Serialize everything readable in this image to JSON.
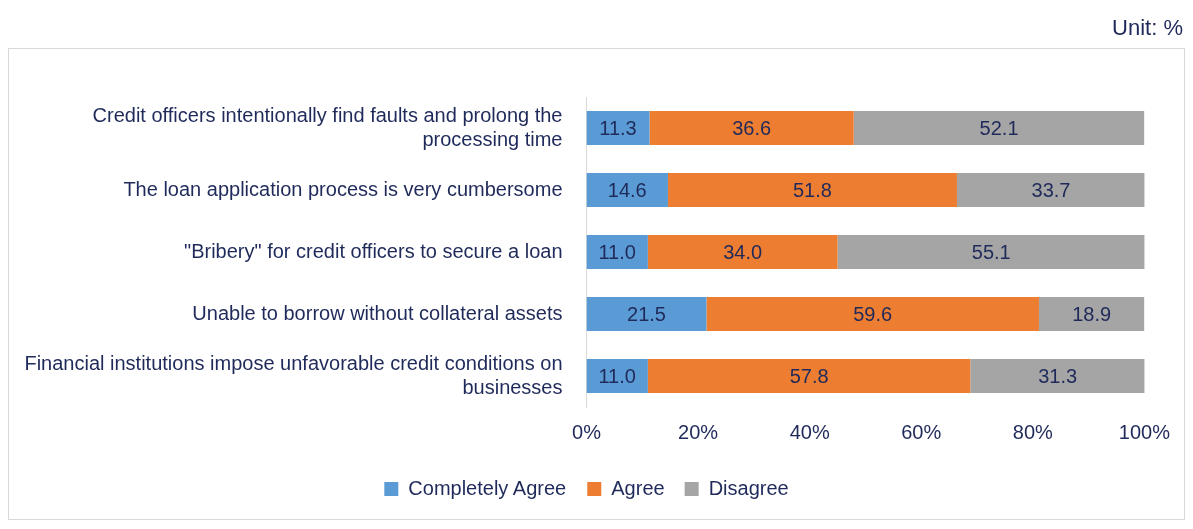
{
  "chart_data": {
    "type": "bar",
    "orientation": "horizontal",
    "stacked": true,
    "categories": [
      "Credit officers intentionally find faults and prolong the processing time",
      "The loan application process is very cumbersome",
      "\"Bribery\" for credit officers to secure a loan",
      "Unable to borrow without collateral assets",
      "Financial institutions impose unfavorable credit conditions on businesses"
    ],
    "series": [
      {
        "name": "Completely Agree",
        "color": "#5b9bd5",
        "values": [
          11.3,
          14.6,
          11.0,
          21.5,
          11.0
        ],
        "value_labels": [
          "11.3",
          "14.6",
          "11.0",
          "21.5",
          "11.0"
        ]
      },
      {
        "name": "Agree",
        "color": "#ed7d31",
        "values": [
          36.6,
          51.8,
          34.0,
          59.6,
          57.8
        ],
        "value_labels": [
          "36.6",
          "51.8",
          "34.0",
          "59.6",
          "57.8"
        ]
      },
      {
        "name": "Disagree",
        "color": "#a5a5a5",
        "values": [
          52.1,
          33.7,
          55.1,
          18.9,
          31.3
        ],
        "value_labels": [
          "52.1",
          "33.7",
          "55.1",
          "18.9",
          "31.3"
        ]
      }
    ],
    "xlim": [
      0,
      100
    ],
    "xticks": [
      {
        "value": 0,
        "label": "0%"
      },
      {
        "value": 20,
        "label": "20%"
      },
      {
        "value": 40,
        "label": "40%"
      },
      {
        "value": 60,
        "label": "60%"
      },
      {
        "value": 80,
        "label": "80%"
      },
      {
        "value": 100,
        "label": "100%"
      }
    ],
    "grid": false,
    "legend": "bottom",
    "annotations": [
      "Unit: %"
    ]
  }
}
